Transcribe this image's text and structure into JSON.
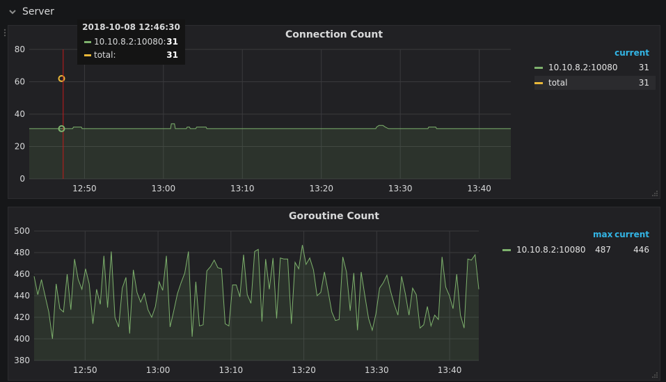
{
  "row": {
    "title": "Server",
    "chevron_icon": "chevron-down-icon"
  },
  "tooltip": {
    "time": "2018-10-08 12:46:30",
    "rows": [
      {
        "name": "10.10.8.2:10080:",
        "value": "31",
        "color": "#7eb26d"
      },
      {
        "name": "total:",
        "value": "31",
        "color": "#eab839"
      }
    ]
  },
  "legend1": {
    "headers": [
      "current"
    ],
    "rows": [
      {
        "name": "10.10.8.2:10080",
        "current": "31",
        "color": "#7eb26d"
      },
      {
        "name": "total",
        "current": "31",
        "color": "#eab839"
      }
    ]
  },
  "legend2": {
    "headers": [
      "max",
      "current"
    ],
    "rows": [
      {
        "name": "10.10.8.2:10080",
        "max": "487",
        "current": "446",
        "color": "#7eb26d"
      }
    ]
  },
  "chart_data": [
    {
      "type": "line",
      "title": "Connection Count",
      "ylim": [
        0,
        80
      ],
      "yticks": [
        "0",
        "20",
        "40",
        "60",
        "80"
      ],
      "xlim": [
        0,
        61
      ],
      "xticks": [
        {
          "x": 7,
          "label": "12:50"
        },
        {
          "x": 17,
          "label": "13:00"
        },
        {
          "x": 27,
          "label": "13:10"
        },
        {
          "x": 37,
          "label": "13:20"
        },
        {
          "x": 47,
          "label": "13:30"
        },
        {
          "x": 57,
          "label": "13:40"
        }
      ],
      "series": [
        {
          "name": "10.10.8.2:10080",
          "color": "#7eb26d",
          "fill": true,
          "points": [
            [
              0,
              31
            ],
            [
              5.5,
              31
            ],
            [
              5.6,
              32
            ],
            [
              6.6,
              32
            ],
            [
              6.7,
              31
            ],
            [
              17.9,
              31
            ],
            [
              18,
              34
            ],
            [
              18.4,
              34
            ],
            [
              18.5,
              31
            ],
            [
              19.9,
              31
            ],
            [
              20,
              32
            ],
            [
              20.3,
              32
            ],
            [
              20.4,
              31
            ],
            [
              21.1,
              31
            ],
            [
              21.2,
              32
            ],
            [
              22.4,
              32
            ],
            [
              22.5,
              31
            ],
            [
              43.9,
              31
            ],
            [
              44,
              32
            ],
            [
              44.3,
              33
            ],
            [
              44.8,
              33
            ],
            [
              45.1,
              32
            ],
            [
              45.5,
              31
            ],
            [
              50.5,
              31
            ],
            [
              50.6,
              32
            ],
            [
              51.5,
              32
            ],
            [
              51.6,
              31
            ],
            [
              61,
              31
            ]
          ]
        },
        {
          "name": "total",
          "color": "#eab839",
          "fill": false,
          "points": [
            [
              4.1,
              62
            ]
          ]
        }
      ],
      "crosshair_x": 4.3
    },
    {
      "type": "line",
      "title": "Goroutine Count",
      "ylim": [
        380,
        500
      ],
      "yticks": [
        "380",
        "400",
        "420",
        "440",
        "460",
        "480",
        "500"
      ],
      "xlim": [
        0,
        61
      ],
      "xticks": [
        {
          "x": 7,
          "label": "12:50"
        },
        {
          "x": 17,
          "label": "13:00"
        },
        {
          "x": 27,
          "label": "13:10"
        },
        {
          "x": 37,
          "label": "13:20"
        },
        {
          "x": 47,
          "label": "13:30"
        },
        {
          "x": 57,
          "label": "13:40"
        }
      ],
      "series": [
        {
          "name": "10.10.8.2:10080",
          "color": "#7eb26d",
          "fill": true,
          "values": [
            458,
            441,
            455,
            440,
            425,
            400,
            451,
            428,
            425,
            460,
            427,
            474,
            455,
            446,
            465,
            451,
            414,
            446,
            432,
            477,
            429,
            481,
            420,
            411,
            447,
            457,
            405,
            464,
            443,
            434,
            442,
            427,
            420,
            430,
            453,
            445,
            477,
            411,
            426,
            442,
            452,
            461,
            481,
            402,
            453,
            412,
            413,
            463,
            467,
            473,
            466,
            465,
            414,
            412,
            450,
            450,
            439,
            478,
            441,
            433,
            481,
            483,
            416,
            474,
            446,
            475,
            419,
            475,
            474,
            474,
            414,
            471,
            465,
            487,
            469,
            475,
            464,
            440,
            443,
            462,
            444,
            425,
            417,
            418,
            476,
            462,
            426,
            461,
            408,
            462,
            440,
            419,
            408,
            423,
            447,
            452,
            459,
            444,
            432,
            422,
            458,
            442,
            422,
            447,
            441,
            410,
            413,
            430,
            412,
            422,
            418,
            476,
            448,
            440,
            428,
            460,
            422,
            410,
            474,
            473,
            478,
            446
          ]
        }
      ]
    }
  ]
}
